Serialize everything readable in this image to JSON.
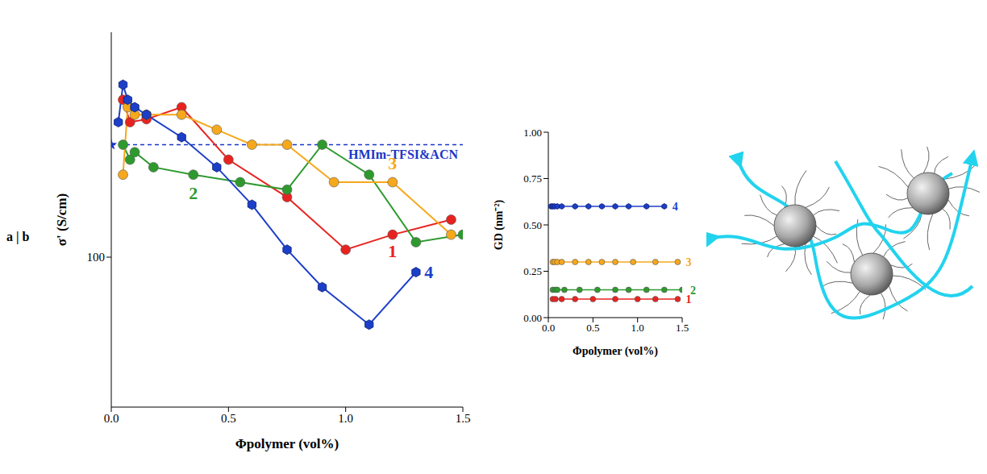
{
  "panel_label": "a | b",
  "chart_data": [
    {
      "type": "line",
      "x_label": "Φpolymer (vol%)",
      "y_label": "σ' (S/cm)",
      "xlim": [
        0,
        1.5
      ],
      "xticks": [
        {
          "value": 0,
          "label": "0.0"
        },
        {
          "value": 0.5,
          "label": "0.5"
        },
        {
          "value": 1,
          "label": "1.0"
        },
        {
          "value": 1.5,
          "label": "1.5"
        }
      ],
      "ylim": [
        0,
        250
      ],
      "yticks": [
        100
      ],
      "grid": false,
      "reference": {
        "label": "HMIm-TFSI&ACN",
        "x": 0,
        "value": 175,
        "color": "#1a35c8",
        "marker": "star"
      },
      "series": [
        {
          "name": "1",
          "color": "#e8231f",
          "marker": "circle",
          "x": [
            0.05,
            0.08,
            0.15,
            0.3,
            0.5,
            0.75,
            1.0,
            1.2,
            1.45
          ],
          "values": [
            205,
            190,
            192,
            200,
            165,
            140,
            105,
            115,
            125
          ]
        },
        {
          "name": "2",
          "color": "#2e9a2e",
          "marker": "circle",
          "x": [
            0.05,
            0.08,
            0.1,
            0.18,
            0.35,
            0.55,
            0.75,
            0.9,
            1.1,
            1.3,
            1.5
          ],
          "values": [
            175,
            165,
            170,
            160,
            155,
            150,
            145,
            175,
            155,
            110,
            115
          ]
        },
        {
          "name": "3",
          "color": "#f6a81c",
          "marker": "circle",
          "x": [
            0.05,
            0.07,
            0.1,
            0.15,
            0.3,
            0.45,
            0.6,
            0.75,
            0.95,
            1.2,
            1.45
          ],
          "values": [
            155,
            200,
            195,
            195,
            195,
            185,
            175,
            175,
            150,
            150,
            115
          ]
        },
        {
          "name": "4",
          "color": "#1c3fc9",
          "marker": "hexagon",
          "x": [
            0.03,
            0.05,
            0.07,
            0.1,
            0.15,
            0.3,
            0.45,
            0.6,
            0.75,
            0.9,
            1.1,
            1.3
          ],
          "values": [
            190,
            215,
            205,
            200,
            195,
            180,
            160,
            135,
            105,
            80,
            55,
            90
          ]
        }
      ]
    },
    {
      "type": "line",
      "x_label": "Φpolymer (vol%)",
      "y_label": "GD (nm⁻²)",
      "xlim": [
        0,
        1.5
      ],
      "xticks": [
        {
          "value": 0,
          "label": "0.0"
        },
        {
          "value": 0.5,
          "label": "0.5"
        },
        {
          "value": 1,
          "label": "1.0"
        },
        {
          "value": 1.5,
          "label": "1.5"
        }
      ],
      "ylim": [
        0,
        1
      ],
      "yticks": [
        {
          "value": 0,
          "label": "0.00"
        },
        {
          "value": 0.25,
          "label": "0.25"
        },
        {
          "value": 0.5,
          "label": "0.50"
        },
        {
          "value": 0.75,
          "label": "0.75"
        },
        {
          "value": 1,
          "label": "1.00"
        }
      ],
      "grid": false,
      "series": [
        {
          "name": "1",
          "color": "#e8231f",
          "marker": "circle",
          "x": [
            0.05,
            0.08,
            0.15,
            0.3,
            0.5,
            0.75,
            1.0,
            1.2,
            1.45
          ],
          "values": [
            0.1,
            0.1,
            0.1,
            0.1,
            0.1,
            0.1,
            0.1,
            0.1,
            0.1
          ]
        },
        {
          "name": "2",
          "color": "#2e9a2e",
          "marker": "circle",
          "x": [
            0.05,
            0.08,
            0.1,
            0.18,
            0.35,
            0.55,
            0.75,
            0.9,
            1.1,
            1.3,
            1.5
          ],
          "values": [
            0.15,
            0.15,
            0.15,
            0.15,
            0.15,
            0.15,
            0.15,
            0.15,
            0.15,
            0.15,
            0.15
          ]
        },
        {
          "name": "3",
          "color": "#f6a81c",
          "marker": "circle",
          "x": [
            0.05,
            0.07,
            0.1,
            0.15,
            0.3,
            0.45,
            0.6,
            0.75,
            0.95,
            1.2,
            1.45
          ],
          "values": [
            0.3,
            0.3,
            0.3,
            0.3,
            0.3,
            0.3,
            0.3,
            0.3,
            0.3,
            0.3,
            0.3
          ]
        },
        {
          "name": "4",
          "color": "#1c3fc9",
          "marker": "hexagon",
          "x": [
            0.03,
            0.05,
            0.07,
            0.1,
            0.15,
            0.3,
            0.45,
            0.6,
            0.75,
            0.9,
            1.1,
            1.3
          ],
          "values": [
            0.6,
            0.6,
            0.6,
            0.6,
            0.6,
            0.6,
            0.6,
            0.6,
            0.6,
            0.6,
            0.6,
            0.6
          ]
        }
      ]
    }
  ]
}
